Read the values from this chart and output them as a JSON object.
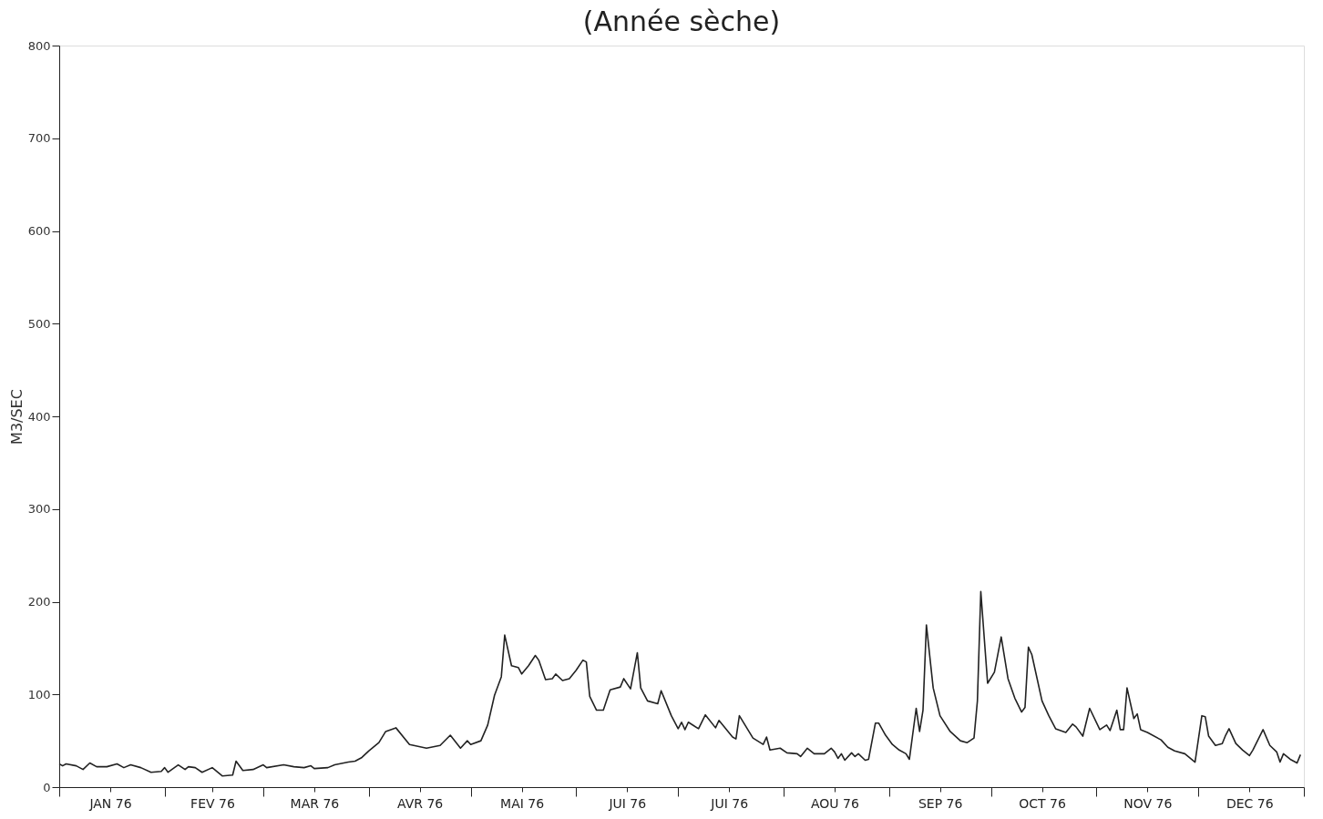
{
  "chart_data": {
    "type": "line",
    "title": "(Année sèche)",
    "ylabel": "M3/SEC",
    "xlim": [
      "1976-01-01",
      "1977-01-01"
    ],
    "xticks": [
      {
        "value": "1976-01-01",
        "label": null
      },
      {
        "value": "1976-01-16",
        "label": "JAN 76"
      },
      {
        "value": "1976-02-01",
        "label": null
      },
      {
        "value": "1976-02-15",
        "label": "FEV 76"
      },
      {
        "value": "1976-03-01",
        "label": null
      },
      {
        "value": "1976-03-16",
        "label": "MAR 76"
      },
      {
        "value": "1976-04-01",
        "label": null
      },
      {
        "value": "1976-04-16",
        "label": "AVR 76"
      },
      {
        "value": "1976-05-01",
        "label": null
      },
      {
        "value": "1976-05-16",
        "label": "MAI 76"
      },
      {
        "value": "1976-06-01",
        "label": null
      },
      {
        "value": "1976-06-16",
        "label": "JUI 76"
      },
      {
        "value": "1976-07-01",
        "label": null
      },
      {
        "value": "1976-07-16",
        "label": "JUI 76"
      },
      {
        "value": "1976-08-01",
        "label": null
      },
      {
        "value": "1976-08-16",
        "label": "AOU 76"
      },
      {
        "value": "1976-09-01",
        "label": null
      },
      {
        "value": "1976-09-16",
        "label": "SEP 76"
      },
      {
        "value": "1976-10-01",
        "label": null
      },
      {
        "value": "1976-10-16",
        "label": "OCT 76"
      },
      {
        "value": "1976-11-01",
        "label": null
      },
      {
        "value": "1976-11-16",
        "label": "NOV 76"
      },
      {
        "value": "1976-12-01",
        "label": null
      },
      {
        "value": "1976-12-16",
        "label": "DEC 76"
      },
      {
        "value": "1977-01-01",
        "label": null
      }
    ],
    "ylim": [
      0,
      800
    ],
    "yticks": [
      0,
      100,
      200,
      300,
      400,
      500,
      600,
      700,
      800
    ],
    "grid": false,
    "marker": "none",
    "line_style": "solid",
    "series": [
      {
        "color": "#222222",
        "x": [
          "1976-01-01",
          "1976-01-02",
          "1976-01-03",
          "1976-01-06",
          "1976-01-08",
          "1976-01-10",
          "1976-01-12",
          "1976-01-15",
          "1976-01-18",
          "1976-01-20",
          "1976-01-22",
          "1976-01-25",
          "1976-01-28",
          "1976-01-31",
          "1976-02-01",
          "1976-02-02",
          "1976-02-05",
          "1976-02-07",
          "1976-02-08",
          "1976-02-10",
          "1976-02-12",
          "1976-02-15",
          "1976-02-18",
          "1976-02-21",
          "1976-02-22",
          "1976-02-24",
          "1976-02-27",
          "1976-03-01",
          "1976-03-02",
          "1976-03-07",
          "1976-03-10",
          "1976-03-13",
          "1976-03-15",
          "1976-03-16",
          "1976-03-20",
          "1976-03-22",
          "1976-03-26",
          "1976-03-28",
          "1976-03-30",
          "1976-04-01",
          "1976-04-04",
          "1976-04-06",
          "1976-04-09",
          "1976-04-13",
          "1976-04-18",
          "1976-04-22",
          "1976-04-25",
          "1976-04-28",
          "1976-04-30",
          "1976-05-01",
          "1976-05-04",
          "1976-05-06",
          "1976-05-08",
          "1976-05-10",
          "1976-05-11",
          "1976-05-13",
          "1976-05-15",
          "1976-05-16",
          "1976-05-18",
          "1976-05-20",
          "1976-05-21",
          "1976-05-23",
          "1976-05-25",
          "1976-05-26",
          "1976-05-28",
          "1976-05-30",
          "1976-06-01",
          "1976-06-03",
          "1976-06-04",
          "1976-06-05",
          "1976-06-07",
          "1976-06-09",
          "1976-06-11",
          "1976-06-14",
          "1976-06-15",
          "1976-06-17",
          "1976-06-19",
          "1976-06-20",
          "1976-06-22",
          "1976-06-25",
          "1976-06-26",
          "1976-06-29",
          "1976-07-01",
          "1976-07-02",
          "1976-07-03",
          "1976-07-04",
          "1976-07-07",
          "1976-07-09",
          "1976-07-12",
          "1976-07-13",
          "1976-07-17",
          "1976-07-18",
          "1976-07-19",
          "1976-07-23",
          "1976-07-26",
          "1976-07-27",
          "1976-07-28",
          "1976-07-31",
          "1976-08-02",
          "1976-08-05",
          "1976-08-06",
          "1976-08-08",
          "1976-08-10",
          "1976-08-13",
          "1976-08-15",
          "1976-08-16",
          "1976-08-17",
          "1976-08-18",
          "1976-08-19",
          "1976-08-21",
          "1976-08-22",
          "1976-08-23",
          "1976-08-25",
          "1976-08-26",
          "1976-08-28",
          "1976-08-29",
          "1976-08-31",
          "1976-09-02",
          "1976-09-04",
          "1976-09-06",
          "1976-09-07",
          "1976-09-09",
          "1976-09-10",
          "1976-09-11",
          "1976-09-12",
          "1976-09-14",
          "1976-09-16",
          "1976-09-19",
          "1976-09-22",
          "1976-09-24",
          "1976-09-26",
          "1976-09-27",
          "1976-09-28",
          "1976-09-30",
          "1976-10-02",
          "1976-10-04",
          "1976-10-06",
          "1976-10-08",
          "1976-10-10",
          "1976-10-11",
          "1976-10-12",
          "1976-10-13",
          "1976-10-16",
          "1976-10-18",
          "1976-10-20",
          "1976-10-23",
          "1976-10-25",
          "1976-10-26",
          "1976-10-28",
          "1976-10-30",
          "1976-11-02",
          "1976-11-04",
          "1976-11-05",
          "1976-11-07",
          "1976-11-08",
          "1976-11-09",
          "1976-11-10",
          "1976-11-12",
          "1976-11-13",
          "1976-11-14",
          "1976-11-16",
          "1976-11-20",
          "1976-11-22",
          "1976-11-24",
          "1976-11-27",
          "1976-11-30",
          "1976-12-02",
          "1976-12-03",
          "1976-12-04",
          "1976-12-06",
          "1976-12-08",
          "1976-12-09",
          "1976-12-10",
          "1976-12-12",
          "1976-12-14",
          "1976-12-16",
          "1976-12-17",
          "1976-12-20",
          "1976-12-22",
          "1976-12-24",
          "1976-12-25",
          "1976-12-26",
          "1976-12-28",
          "1976-12-30",
          "1976-12-31"
        ],
        "values": [
          25,
          23,
          25,
          23,
          19,
          26,
          22,
          22,
          25,
          21,
          24,
          21,
          16,
          17,
          21,
          16,
          24,
          19,
          22,
          21,
          16,
          21,
          12,
          13,
          28,
          18,
          19,
          24,
          21,
          24,
          22,
          21,
          23,
          20,
          21,
          24,
          27,
          28,
          32,
          39,
          48,
          60,
          64,
          46,
          42,
          45,
          56,
          42,
          50,
          46,
          50,
          67,
          99,
          119,
          164,
          131,
          129,
          122,
          131,
          142,
          137,
          116,
          117,
          122,
          115,
          117,
          126,
          137,
          135,
          98,
          83,
          83,
          105,
          108,
          117,
          106,
          145,
          107,
          93,
          90,
          104,
          77,
          63,
          70,
          62,
          70,
          63,
          78,
          64,
          72,
          54,
          52,
          77,
          53,
          46,
          54,
          40,
          42,
          37,
          36,
          33,
          42,
          36,
          36,
          42,
          38,
          31,
          36,
          29,
          37,
          33,
          36,
          29,
          30,
          69,
          69,
          56,
          46,
          40,
          36,
          30,
          85,
          60,
          83,
          175,
          107,
          77,
          60,
          50,
          48,
          53,
          93,
          211,
          112,
          124,
          162,
          117,
          96,
          81,
          86,
          151,
          143,
          93,
          77,
          63,
          59,
          68,
          65,
          55,
          85,
          62,
          67,
          61,
          83,
          62,
          62,
          107,
          74,
          79,
          62,
          59,
          51,
          43,
          39,
          36,
          27,
          77,
          76,
          55,
          45,
          47,
          56,
          63,
          47,
          40,
          34,
          40,
          62,
          45,
          38,
          27,
          36,
          30,
          26,
          35
        ]
      }
    ]
  }
}
